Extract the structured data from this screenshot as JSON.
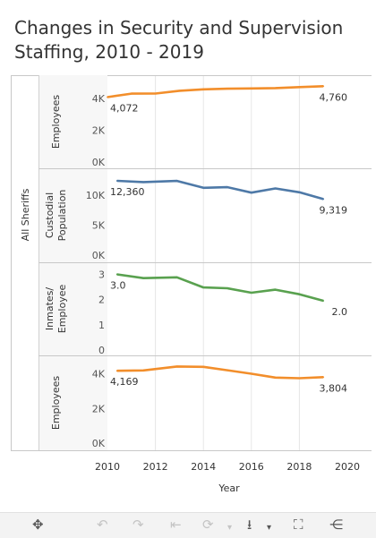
{
  "title": "Changes in Security and Supervision Staffing, 2010 - 2019",
  "chart_data": {
    "type": "line",
    "group_label": "All Sheriffs",
    "xlabel": "Year",
    "xlim": [
      2010,
      2020
    ],
    "x_ticks": [
      "2010",
      "2012",
      "2014",
      "2016",
      "2018",
      "2020"
    ],
    "x": [
      2010,
      2011,
      2012,
      2013,
      2014,
      2015,
      2016,
      2017,
      2018,
      2019
    ],
    "panels": [
      {
        "ylabel": [
          "Employees"
        ],
        "ylim": [
          0,
          5000
        ],
        "y_ticks": [
          {
            "v": 0,
            "label": "0K"
          },
          {
            "v": 2000,
            "label": "2K"
          },
          {
            "v": 4000,
            "label": "4K"
          }
        ],
        "color": "#f28e2b",
        "values": [
          4072,
          4290,
          4300,
          4470,
          4560,
          4600,
          4620,
          4640,
          4700,
          4760
        ],
        "first_label": "4,072",
        "last_label": "4,760"
      },
      {
        "ylabel": [
          "Custodial",
          "Population"
        ],
        "ylim": [
          0,
          13700
        ],
        "y_ticks": [
          {
            "v": 0,
            "label": "0K"
          },
          {
            "v": 5000,
            "label": "5K"
          },
          {
            "v": 10000,
            "label": "10K"
          }
        ],
        "color": "#4e79a7",
        "values": [
          12360,
          12150,
          12350,
          11200,
          11300,
          10400,
          11100,
          10450,
          9319
        ],
        "x_override": [
          2010.4,
          2011.5,
          2012.9,
          2014,
          2015,
          2016,
          2017,
          2018,
          2019
        ],
        "first_label": "12,360",
        "last_label": "9,319"
      },
      {
        "ylabel": [
          "Inmates/",
          "Employee"
        ],
        "ylim": [
          0,
          3.3
        ],
        "y_ticks": [
          {
            "v": 0,
            "label": "0"
          },
          {
            "v": 1,
            "label": "1"
          },
          {
            "v": 2,
            "label": "2"
          },
          {
            "v": 3,
            "label": "3"
          }
        ],
        "color": "#59a14f",
        "values": [
          3.0,
          2.85,
          2.88,
          2.48,
          2.45,
          2.27,
          2.39,
          2.21,
          1.95
        ],
        "x_override": [
          2010.4,
          2011.5,
          2012.9,
          2014,
          2015,
          2016,
          2017,
          2018,
          2019
        ],
        "first_label": "3.0",
        "last_label": "2.0"
      },
      {
        "ylabel": [
          "Employees"
        ],
        "ylim": [
          0,
          4800
        ],
        "y_ticks": [
          {
            "v": 0,
            "label": "0K"
          },
          {
            "v": 2000,
            "label": "2K"
          },
          {
            "v": 4000,
            "label": "4K"
          }
        ],
        "color": "#f28e2b",
        "values": [
          4169,
          4190,
          4420,
          4400,
          4200,
          4000,
          3780,
          3740,
          3804
        ],
        "x_override": [
          2010.4,
          2011.5,
          2012.9,
          2014,
          2015,
          2016,
          2017,
          2018,
          2019
        ],
        "first_label": "4,169",
        "last_label": "3,804"
      }
    ]
  },
  "toolbar": {
    "icons": [
      "move-icon",
      "undo-icon",
      "redo-icon",
      "revert-icon",
      "refresh-icon",
      "download-icon",
      "fullscreen-icon",
      "share-icon"
    ]
  }
}
